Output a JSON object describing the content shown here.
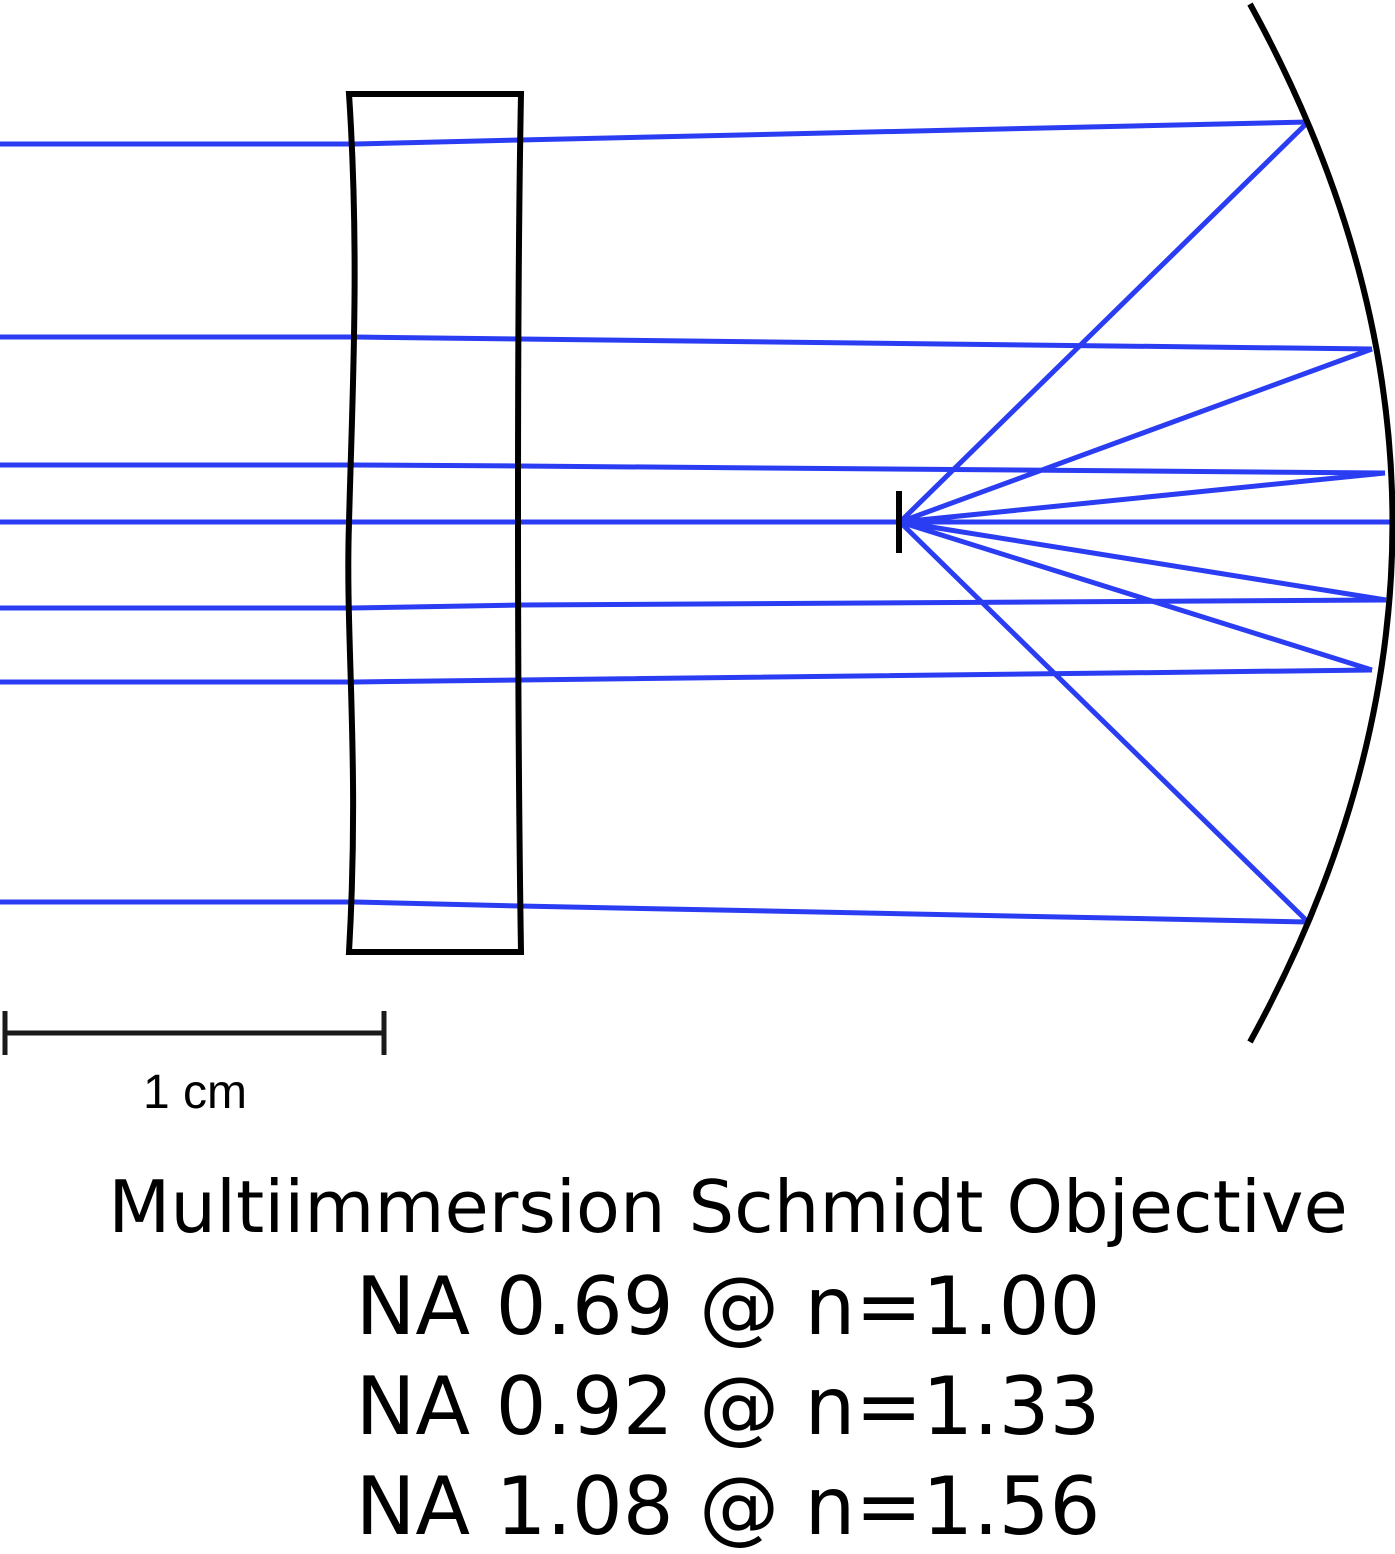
{
  "scale_bar": {
    "label": "1 cm"
  },
  "caption": {
    "title": "Multiimmersion Schmidt Objective",
    "lines": [
      "NA 0.69 @ n=1.00",
      "NA 0.92 @ n=1.33",
      "NA 1.08 @ n=1.56"
    ]
  },
  "colors": {
    "ray": "#2b3df2",
    "optic": "#000000"
  }
}
